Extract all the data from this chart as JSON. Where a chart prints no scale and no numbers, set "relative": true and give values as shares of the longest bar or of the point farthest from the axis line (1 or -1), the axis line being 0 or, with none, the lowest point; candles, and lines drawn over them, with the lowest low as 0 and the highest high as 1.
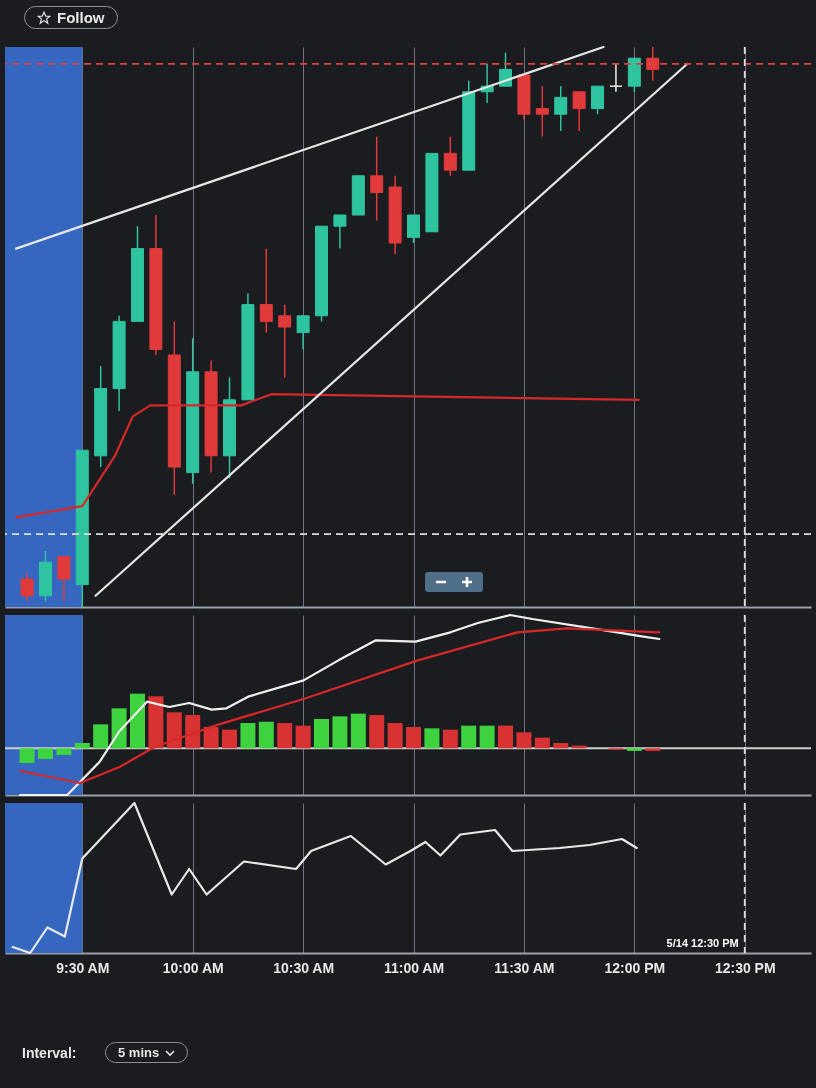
{
  "chart_data": [
    {
      "type": "candlestick",
      "relative": true,
      "annotations": [
        "Follow"
      ],
      "x": [
        9.25,
        9.3333,
        9.4167,
        9.5,
        9.5833,
        9.6667,
        9.75,
        9.8333,
        9.9167,
        10,
        10.0833,
        10.1667,
        10.25,
        10.3333,
        10.4167,
        10.5,
        10.5833,
        10.6667,
        10.75,
        10.8333,
        10.9167,
        11,
        11.0833,
        11.1667,
        11.25,
        11.3333,
        11.4167,
        11.5,
        11.5833,
        11.6667,
        11.75,
        11.8333,
        11.9167,
        12,
        12.0833
      ],
      "ohlc": [
        [
          0.05,
          0.06,
          0.01,
          0.02
        ],
        [
          0.02,
          0.1,
          0.01,
          0.08
        ],
        [
          0.09,
          0.09,
          0.01,
          0.05
        ],
        [
          0.04,
          0.28,
          0,
          0.28
        ],
        [
          0.27,
          0.43,
          0.25,
          0.39
        ],
        [
          0.39,
          0.52,
          0.35,
          0.51
        ],
        [
          0.51,
          0.68,
          0.51,
          0.64
        ],
        [
          0.64,
          0.7,
          0.45,
          0.46
        ],
        [
          0.45,
          0.51,
          0.2,
          0.25
        ],
        [
          0.24,
          0.48,
          0.22,
          0.42
        ],
        [
          0.42,
          0.44,
          0.24,
          0.27
        ],
        [
          0.27,
          0.41,
          0.23,
          0.37
        ],
        [
          0.37,
          0.56,
          0.37,
          0.54
        ],
        [
          0.54,
          0.64,
          0.49,
          0.51
        ],
        [
          0.52,
          0.54,
          0.41,
          0.5
        ],
        [
          0.49,
          0.52,
          0.46,
          0.52
        ],
        [
          0.52,
          0.68,
          0.51,
          0.68
        ],
        [
          0.68,
          0.7,
          0.64,
          0.7
        ],
        [
          0.7,
          0.77,
          0.7,
          0.77
        ],
        [
          0.77,
          0.84,
          0.69,
          0.74
        ],
        [
          0.75,
          0.77,
          0.63,
          0.65
        ],
        [
          0.66,
          0.7,
          0.65,
          0.7
        ],
        [
          0.67,
          0.81,
          0.67,
          0.81
        ],
        [
          0.81,
          0.84,
          0.77,
          0.78
        ],
        [
          0.78,
          0.94,
          0.78,
          0.92
        ],
        [
          0.92,
          0.97,
          0.9,
          0.93
        ],
        [
          0.93,
          0.99,
          0.93,
          0.96
        ],
        [
          0.95,
          0.95,
          0.87,
          0.88
        ],
        [
          0.89,
          0.93,
          0.84,
          0.88
        ],
        [
          0.88,
          0.93,
          0.85,
          0.91
        ],
        [
          0.92,
          0.92,
          0.85,
          0.89
        ],
        [
          0.89,
          0.93,
          0.88,
          0.93
        ],
        [
          0.93,
          0.97,
          0.92,
          0.93
        ],
        [
          0.93,
          0.98,
          0.92,
          0.98
        ],
        [
          0.98,
          1,
          0.94,
          0.96
        ]
      ],
      "colors": [
        "#e03a3a",
        "#2ec4a0",
        "#e03a3a",
        "#2ec4a0",
        "#2ec4a0",
        "#2ec4a0",
        "#2ec4a0",
        "#e03a3a",
        "#e03a3a",
        "#2ec4a0",
        "#e03a3a",
        "#2ec4a0",
        "#2ec4a0",
        "#e03a3a",
        "#e03a3a",
        "#2ec4a0",
        "#2ec4a0",
        "#2ec4a0",
        "#2ec4a0",
        "#e03a3a",
        "#e03a3a",
        "#2ec4a0",
        "#2ec4a0",
        "#e03a3a",
        "#2ec4a0",
        "#2ec4a0",
        "#2ec4a0",
        "#e03a3a",
        "#e03a3a",
        "#2ec4a0",
        "#e03a3a",
        "#2ec4a0",
        "#eeeeee",
        "#2ec4a0",
        "#e03a3a"
      ],
      "series": [
        {
          "type": "line",
          "color": "#d62828",
          "x": [
            9.2,
            9.5,
            9.648,
            9.728,
            9.808,
            10.22,
            10.357,
            12.02
          ],
          "values": [
            0.16,
            0.18,
            0.27,
            0.34,
            0.36,
            0.36,
            0.38,
            0.37
          ]
        },
        {
          "type": "line",
          "color": "#e6e6e6",
          "x": [
            9.2,
            11.86
          ],
          "values": [
            0.64,
            1
          ]
        },
        {
          "type": "line",
          "color": "#e6e6e6",
          "x": [
            9.56,
            12.24
          ],
          "values": [
            0.02,
            0.97
          ]
        }
      ],
      "xlim": [
        9.15,
        12.8
      ],
      "xticks": [
        {
          "value": 9.5,
          "label": null
        },
        {
          "value": 10,
          "label": null
        },
        {
          "value": 10.5,
          "label": null
        },
        {
          "value": 11,
          "label": null
        },
        {
          "value": 11.5,
          "label": null
        },
        {
          "value": 12,
          "label": null
        },
        {
          "value": 12.5,
          "label": null
        }
      ],
      "tick_labels": false,
      "grid": "x",
      "ref_lines": [
        {
          "axis": "y",
          "value": 0.97,
          "color": "#e04040",
          "line_style": "dashed"
        },
        {
          "axis": "y",
          "value": 0.13,
          "color": "#dddddd",
          "line_style": "dashed"
        },
        {
          "axis": "x",
          "value": 12.5,
          "color": "#dddddd",
          "line_style": "dashed"
        }
      ],
      "bands": [
        {
          "axis": "x",
          "from": 9.15,
          "to": 9.5,
          "color": "#3567c0"
        }
      ]
    },
    {
      "type": "bar",
      "relative": true,
      "x": [
        9.25,
        9.3333,
        9.4167,
        9.5,
        9.5833,
        9.6667,
        9.75,
        9.8333,
        9.9167,
        10,
        10.0833,
        10.1667,
        10.25,
        10.3333,
        10.4167,
        10.5,
        10.5833,
        10.6667,
        10.75,
        10.8333,
        10.9167,
        11,
        11.0833,
        11.1667,
        11.25,
        11.3333,
        11.4167,
        11.5,
        11.5833,
        11.6667,
        11.75,
        11.8333,
        11.9167,
        12,
        12.0833
      ],
      "values": [
        -0.11,
        -0.08,
        -0.05,
        0.04,
        0.18,
        0.3,
        0.41,
        0.39,
        0.27,
        0.25,
        0.16,
        0.14,
        0.19,
        0.2,
        0.19,
        0.17,
        0.22,
        0.24,
        0.26,
        0.25,
        0.19,
        0.16,
        0.15,
        0.14,
        0.17,
        0.17,
        0.17,
        0.12,
        0.08,
        0.04,
        0.02,
        null,
        -0.01,
        -0.02,
        -0.02
      ],
      "colors": [
        "#3ed23e",
        "#3ed23e",
        "#3ed23e",
        "#3ed23e",
        "#3ed23e",
        "#3ed23e",
        "#3ed23e",
        "#d83232",
        "#d83232",
        "#d83232",
        "#d83232",
        "#d83232",
        "#3ed23e",
        "#3ed23e",
        "#d83232",
        "#d83232",
        "#3ed23e",
        "#3ed23e",
        "#3ed23e",
        "#d83232",
        "#d83232",
        "#d83232",
        "#3ed23e",
        "#d83232",
        "#3ed23e",
        "#3ed23e",
        "#d83232",
        "#d83232",
        "#d83232",
        "#d83232",
        "#d83232",
        "#d83232",
        "#d83232",
        "#3ed23e",
        "#d83232"
      ],
      "series": [
        {
          "type": "line",
          "color": "#f0f0f0",
          "x": [
            9.218,
            9.432,
            9.579,
            9.669,
            9.793,
            9.894,
            9.984,
            10.086,
            10.153,
            10.255,
            10.502,
            10.66,
            10.829,
            11.009,
            11.167,
            11.291,
            11.437,
            11.538,
            11.809,
            12.034,
            12.113
          ],
          "values": [
            -0.35,
            -0.35,
            -0.1,
            0.13,
            0.35,
            0.31,
            0.34,
            0.29,
            0.3,
            0.39,
            0.51,
            0.66,
            0.81,
            0.8,
            0.87,
            0.94,
            1,
            0.97,
            0.9,
            0.84,
            0.82
          ]
        },
        {
          "type": "line",
          "color": "#d62828",
          "x": [
            9.218,
            9.489,
            9.669,
            9.827,
            10.119,
            10.502,
            11.02,
            11.471,
            11.696,
            12.113
          ],
          "values": [
            -0.17,
            -0.26,
            -0.14,
            0.01,
            0.18,
            0.37,
            0.66,
            0.87,
            0.9,
            0.87
          ]
        }
      ],
      "xlim": [
        9.15,
        12.8
      ],
      "xticks": [
        {
          "value": 9.5,
          "label": null
        },
        {
          "value": 10,
          "label": null
        },
        {
          "value": 10.5,
          "label": null
        },
        {
          "value": 11,
          "label": null
        },
        {
          "value": 11.5,
          "label": null
        },
        {
          "value": 12,
          "label": null
        },
        {
          "value": 12.5,
          "label": null
        }
      ],
      "tick_labels": false,
      "grid": "x",
      "ref_lines": [
        {
          "axis": "x",
          "value": 12.5,
          "color": "#dddddd",
          "line_style": "dashed"
        }
      ],
      "bands": [
        {
          "axis": "x",
          "from": 9.15,
          "to": 9.5,
          "color": "#3567c0"
        }
      ]
    },
    {
      "type": "line",
      "relative": true,
      "annotations": [
        "Interval:",
        "5 mins"
      ],
      "series": [
        {
          "color": "#e8e8e8",
          "x": [
            9.185,
            9.264,
            9.342,
            9.421,
            9.5,
            9.736,
            9.905,
            9.984,
            10.063,
            10.232,
            10.468,
            10.536,
            10.716,
            10.874,
            10.986,
            11.054,
            11.122,
            11.212,
            11.369,
            11.448,
            11.662,
            11.797,
            11.944,
            12.011
          ],
          "values": [
            0.04,
            0,
            0.17,
            0.11,
            0.63,
            1,
            0.39,
            0.56,
            0.39,
            0.61,
            0.56,
            0.68,
            0.78,
            0.59,
            0.68,
            0.74,
            0.65,
            0.79,
            0.82,
            0.68,
            0.7,
            0.72,
            0.76,
            0.7
          ]
        }
      ],
      "xlim": [
        9.15,
        12.8
      ],
      "xticks": [
        {
          "value": 9.5,
          "label": "9:30 AM"
        },
        {
          "value": 10,
          "label": "10:00 AM"
        },
        {
          "value": 10.5,
          "label": "10:30 AM"
        },
        {
          "value": 11,
          "label": "11:00 AM"
        },
        {
          "value": 11.5,
          "label": "11:30 AM"
        },
        {
          "value": 12,
          "label": "12:00 PM"
        },
        {
          "value": 12.5,
          "label": "12:30 PM"
        }
      ],
      "tick_labels": "x",
      "grid": "x",
      "ref_lines": [
        {
          "axis": "x",
          "value": 12.5,
          "label": "5/14 12:30 PM",
          "color": "#dddddd",
          "line_style": "dashed"
        }
      ],
      "bands": [
        {
          "axis": "x",
          "from": 9.15,
          "to": 9.5,
          "color": "#3567c0"
        }
      ]
    }
  ]
}
